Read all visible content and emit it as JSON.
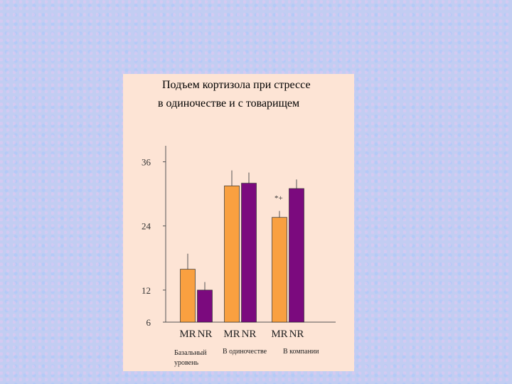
{
  "chart_data": {
    "type": "bar",
    "title": [
      "Подъем кортизола при стрессе",
      "в одиночестве и с товарищем"
    ],
    "categories": [
      "Базальный уровень",
      "В одиночестве",
      "В компании"
    ],
    "series": [
      {
        "name": "MR",
        "color": "#f9a040",
        "values": [
          15.9,
          31.5,
          25.6
        ],
        "errors": [
          2.9,
          2.9,
          1.2
        ]
      },
      {
        "name": "NR",
        "color": "#7b0a7e",
        "values": [
          12,
          32,
          31
        ],
        "errors": [
          1.5,
          2,
          1.7
        ]
      }
    ],
    "annotation": "*+",
    "ylim": [
      6,
      39
    ],
    "yticks": [
      6,
      12,
      24,
      36
    ]
  }
}
